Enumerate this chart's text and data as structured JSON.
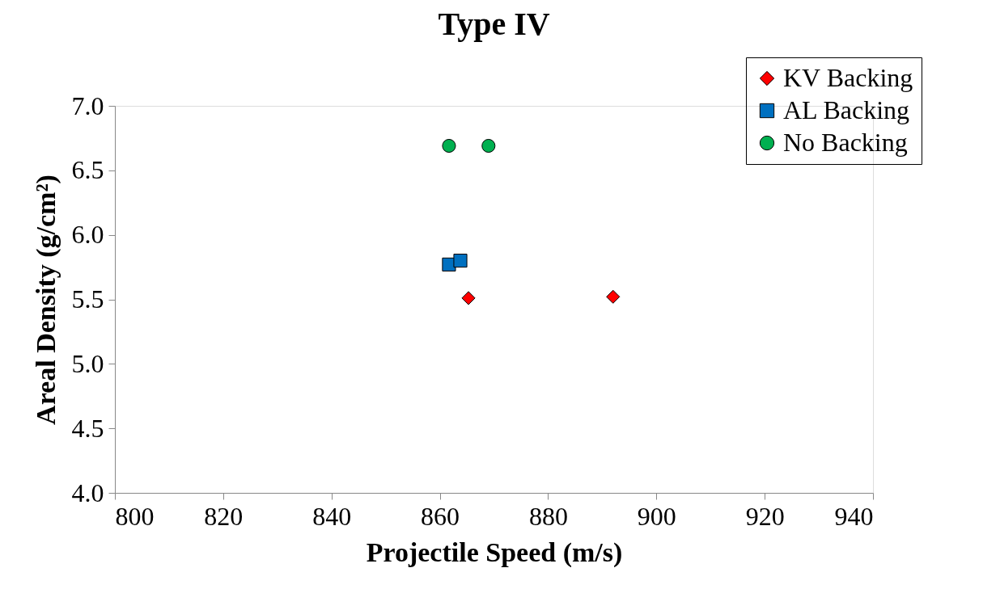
{
  "chart_data": {
    "type": "scatter",
    "title": "Type IV",
    "xlabel": "Projectile Speed (m/s)",
    "ylabel": "Areal Density (g/cm²)",
    "xlim": [
      800,
      940
    ],
    "xticks": [
      800,
      820,
      840,
      860,
      880,
      900,
      920,
      940
    ],
    "ylim": [
      4.0,
      7.0
    ],
    "yticks": [
      {
        "value": 4.0,
        "label": "4.0"
      },
      {
        "value": 4.5,
        "label": "4.5"
      },
      {
        "value": 5.0,
        "label": "5.0"
      },
      {
        "value": 5.5,
        "label": "5.5"
      },
      {
        "value": 6.0,
        "label": "6.0"
      },
      {
        "value": 6.5,
        "label": "6.5"
      },
      {
        "value": 7.0,
        "label": "7.0"
      }
    ],
    "grid": false,
    "legend": "top right",
    "series": [
      {
        "name": "KV Backing",
        "color": "#ff0000",
        "marker": "diamond",
        "x": [
          865.3,
          892.0
        ],
        "values": [
          5.51,
          5.52
        ]
      },
      {
        "name": "AL Backing",
        "color": "#0070c0",
        "marker": "square",
        "x": [
          861.7,
          863.8
        ],
        "values": [
          5.77,
          5.8
        ]
      },
      {
        "name": "No Backing",
        "color": "#00b050",
        "marker": "circle",
        "x": [
          861.7,
          869.0
        ],
        "values": [
          6.69,
          6.69
        ]
      }
    ]
  }
}
